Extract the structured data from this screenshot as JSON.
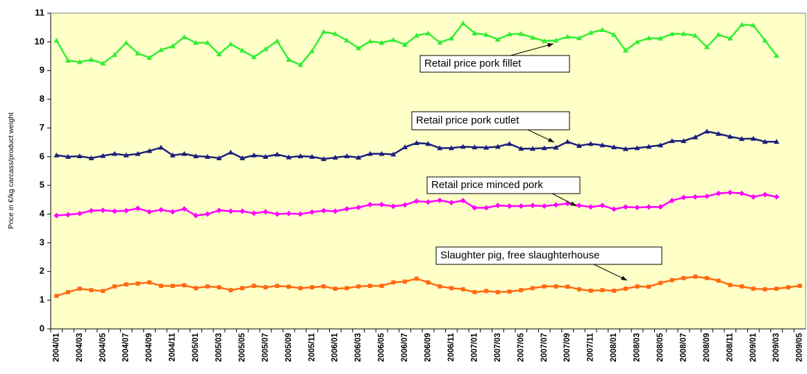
{
  "chart_data": {
    "type": "line",
    "y_label": "Price in €/kg carcass/product weight",
    "categories": [
      "2004/01",
      null,
      "2004/03",
      null,
      "2004/05",
      null,
      "2004/07",
      null,
      "2004/09",
      null,
      "2004/11",
      null,
      "2005/01",
      null,
      "2005/03",
      null,
      "2005/05",
      null,
      "2005/07",
      null,
      "2005/09",
      null,
      "2005/11",
      null,
      "2006/01",
      null,
      "2006/03",
      null,
      "2006/05",
      null,
      "2006/07",
      null,
      "2006/09",
      null,
      "2006/11",
      null,
      "2007/01",
      null,
      "2007/03",
      null,
      "2007/05",
      null,
      "2007/07",
      null,
      "2007/09",
      null,
      "2007/11",
      null,
      "2008/01",
      null,
      "2008/03",
      null,
      "2008/05",
      null,
      "2008/07",
      null,
      "2008/09",
      null,
      "2008/11",
      null,
      "2009/01",
      null,
      "2009/03",
      null,
      "2009/05"
    ],
    "series": [
      {
        "name": "Retail price pork fillet",
        "color": "#33ee33",
        "marker": "triangle",
        "values": [
          10.05,
          9.35,
          9.3,
          9.38,
          9.25,
          9.55,
          9.97,
          9.6,
          9.45,
          9.72,
          9.85,
          10.17,
          9.97,
          9.97,
          9.57,
          9.92,
          9.7,
          9.47,
          9.75,
          10.03,
          9.38,
          9.2,
          9.68,
          10.35,
          10.28,
          10.05,
          9.78,
          10.02,
          9.97,
          10.07,
          9.9,
          10.22,
          10.3,
          9.98,
          10.12,
          10.65,
          10.3,
          10.25,
          10.08,
          10.27,
          10.28,
          10.15,
          10.03,
          10.05,
          10.18,
          10.13,
          10.32,
          10.42,
          10.25,
          9.7,
          10.0,
          10.13,
          10.12,
          10.28,
          10.28,
          10.22,
          9.82,
          10.25,
          10.12,
          10.6,
          10.58,
          10.05,
          9.52,
          null,
          null
        ]
      },
      {
        "name": "Retail price pork cutlet",
        "color": "#1a1f7a",
        "marker": "triangle",
        "values": [
          6.05,
          6.0,
          6.02,
          5.95,
          6.03,
          6.1,
          6.05,
          6.1,
          6.2,
          6.32,
          6.05,
          6.1,
          6.02,
          6.0,
          5.95,
          6.15,
          5.95,
          6.05,
          6.0,
          6.08,
          5.98,
          6.02,
          6.0,
          5.92,
          5.97,
          6.02,
          5.97,
          6.1,
          6.1,
          6.08,
          6.33,
          6.48,
          6.45,
          6.3,
          6.3,
          6.35,
          6.33,
          6.32,
          6.35,
          6.45,
          6.28,
          6.28,
          6.3,
          6.32,
          6.52,
          6.38,
          6.45,
          6.4,
          6.33,
          6.27,
          6.3,
          6.35,
          6.4,
          6.55,
          6.55,
          6.68,
          6.88,
          6.8,
          6.7,
          6.62,
          6.63,
          6.52,
          6.52,
          null,
          null
        ]
      },
      {
        "name": "Retail price minced pork",
        "color": "#ff00ff",
        "marker": "diamond",
        "values": [
          3.95,
          3.98,
          4.02,
          4.12,
          4.13,
          4.1,
          4.12,
          4.2,
          4.08,
          4.15,
          4.08,
          4.18,
          3.95,
          4.0,
          4.13,
          4.1,
          4.1,
          4.03,
          4.08,
          4.0,
          4.02,
          4.0,
          4.07,
          4.12,
          4.1,
          4.18,
          4.23,
          4.33,
          4.33,
          4.27,
          4.32,
          4.45,
          4.42,
          4.48,
          4.4,
          4.47,
          4.22,
          4.22,
          4.3,
          4.28,
          4.28,
          4.3,
          4.28,
          4.32,
          4.37,
          4.3,
          4.25,
          4.3,
          4.17,
          4.25,
          4.23,
          4.25,
          4.25,
          4.47,
          4.58,
          4.6,
          4.62,
          4.72,
          4.75,
          4.72,
          4.6,
          4.68,
          4.6,
          null,
          null
        ]
      },
      {
        "name": "Slaughter pig, free slaughterhouse",
        "color": "#ff6a10",
        "marker": "square",
        "values": [
          1.15,
          1.28,
          1.4,
          1.35,
          1.32,
          1.48,
          1.55,
          1.58,
          1.62,
          1.5,
          1.5,
          1.52,
          1.42,
          1.48,
          1.45,
          1.35,
          1.42,
          1.5,
          1.45,
          1.5,
          1.47,
          1.42,
          1.45,
          1.48,
          1.4,
          1.42,
          1.48,
          1.5,
          1.5,
          1.62,
          1.65,
          1.75,
          1.62,
          1.48,
          1.42,
          1.38,
          1.28,
          1.32,
          1.28,
          1.3,
          1.35,
          1.42,
          1.48,
          1.48,
          1.47,
          1.38,
          1.33,
          1.35,
          1.33,
          1.4,
          1.48,
          1.47,
          1.6,
          1.7,
          1.77,
          1.82,
          1.77,
          1.68,
          1.53,
          1.48,
          1.4,
          1.38,
          1.4,
          1.45,
          1.5
        ]
      }
    ],
    "ylim": [
      0,
      11
    ],
    "yticks": [
      0,
      1,
      2,
      3,
      4,
      5,
      6,
      7,
      8,
      9,
      10,
      11
    ],
    "grid": false,
    "background": "#ffffc8"
  }
}
